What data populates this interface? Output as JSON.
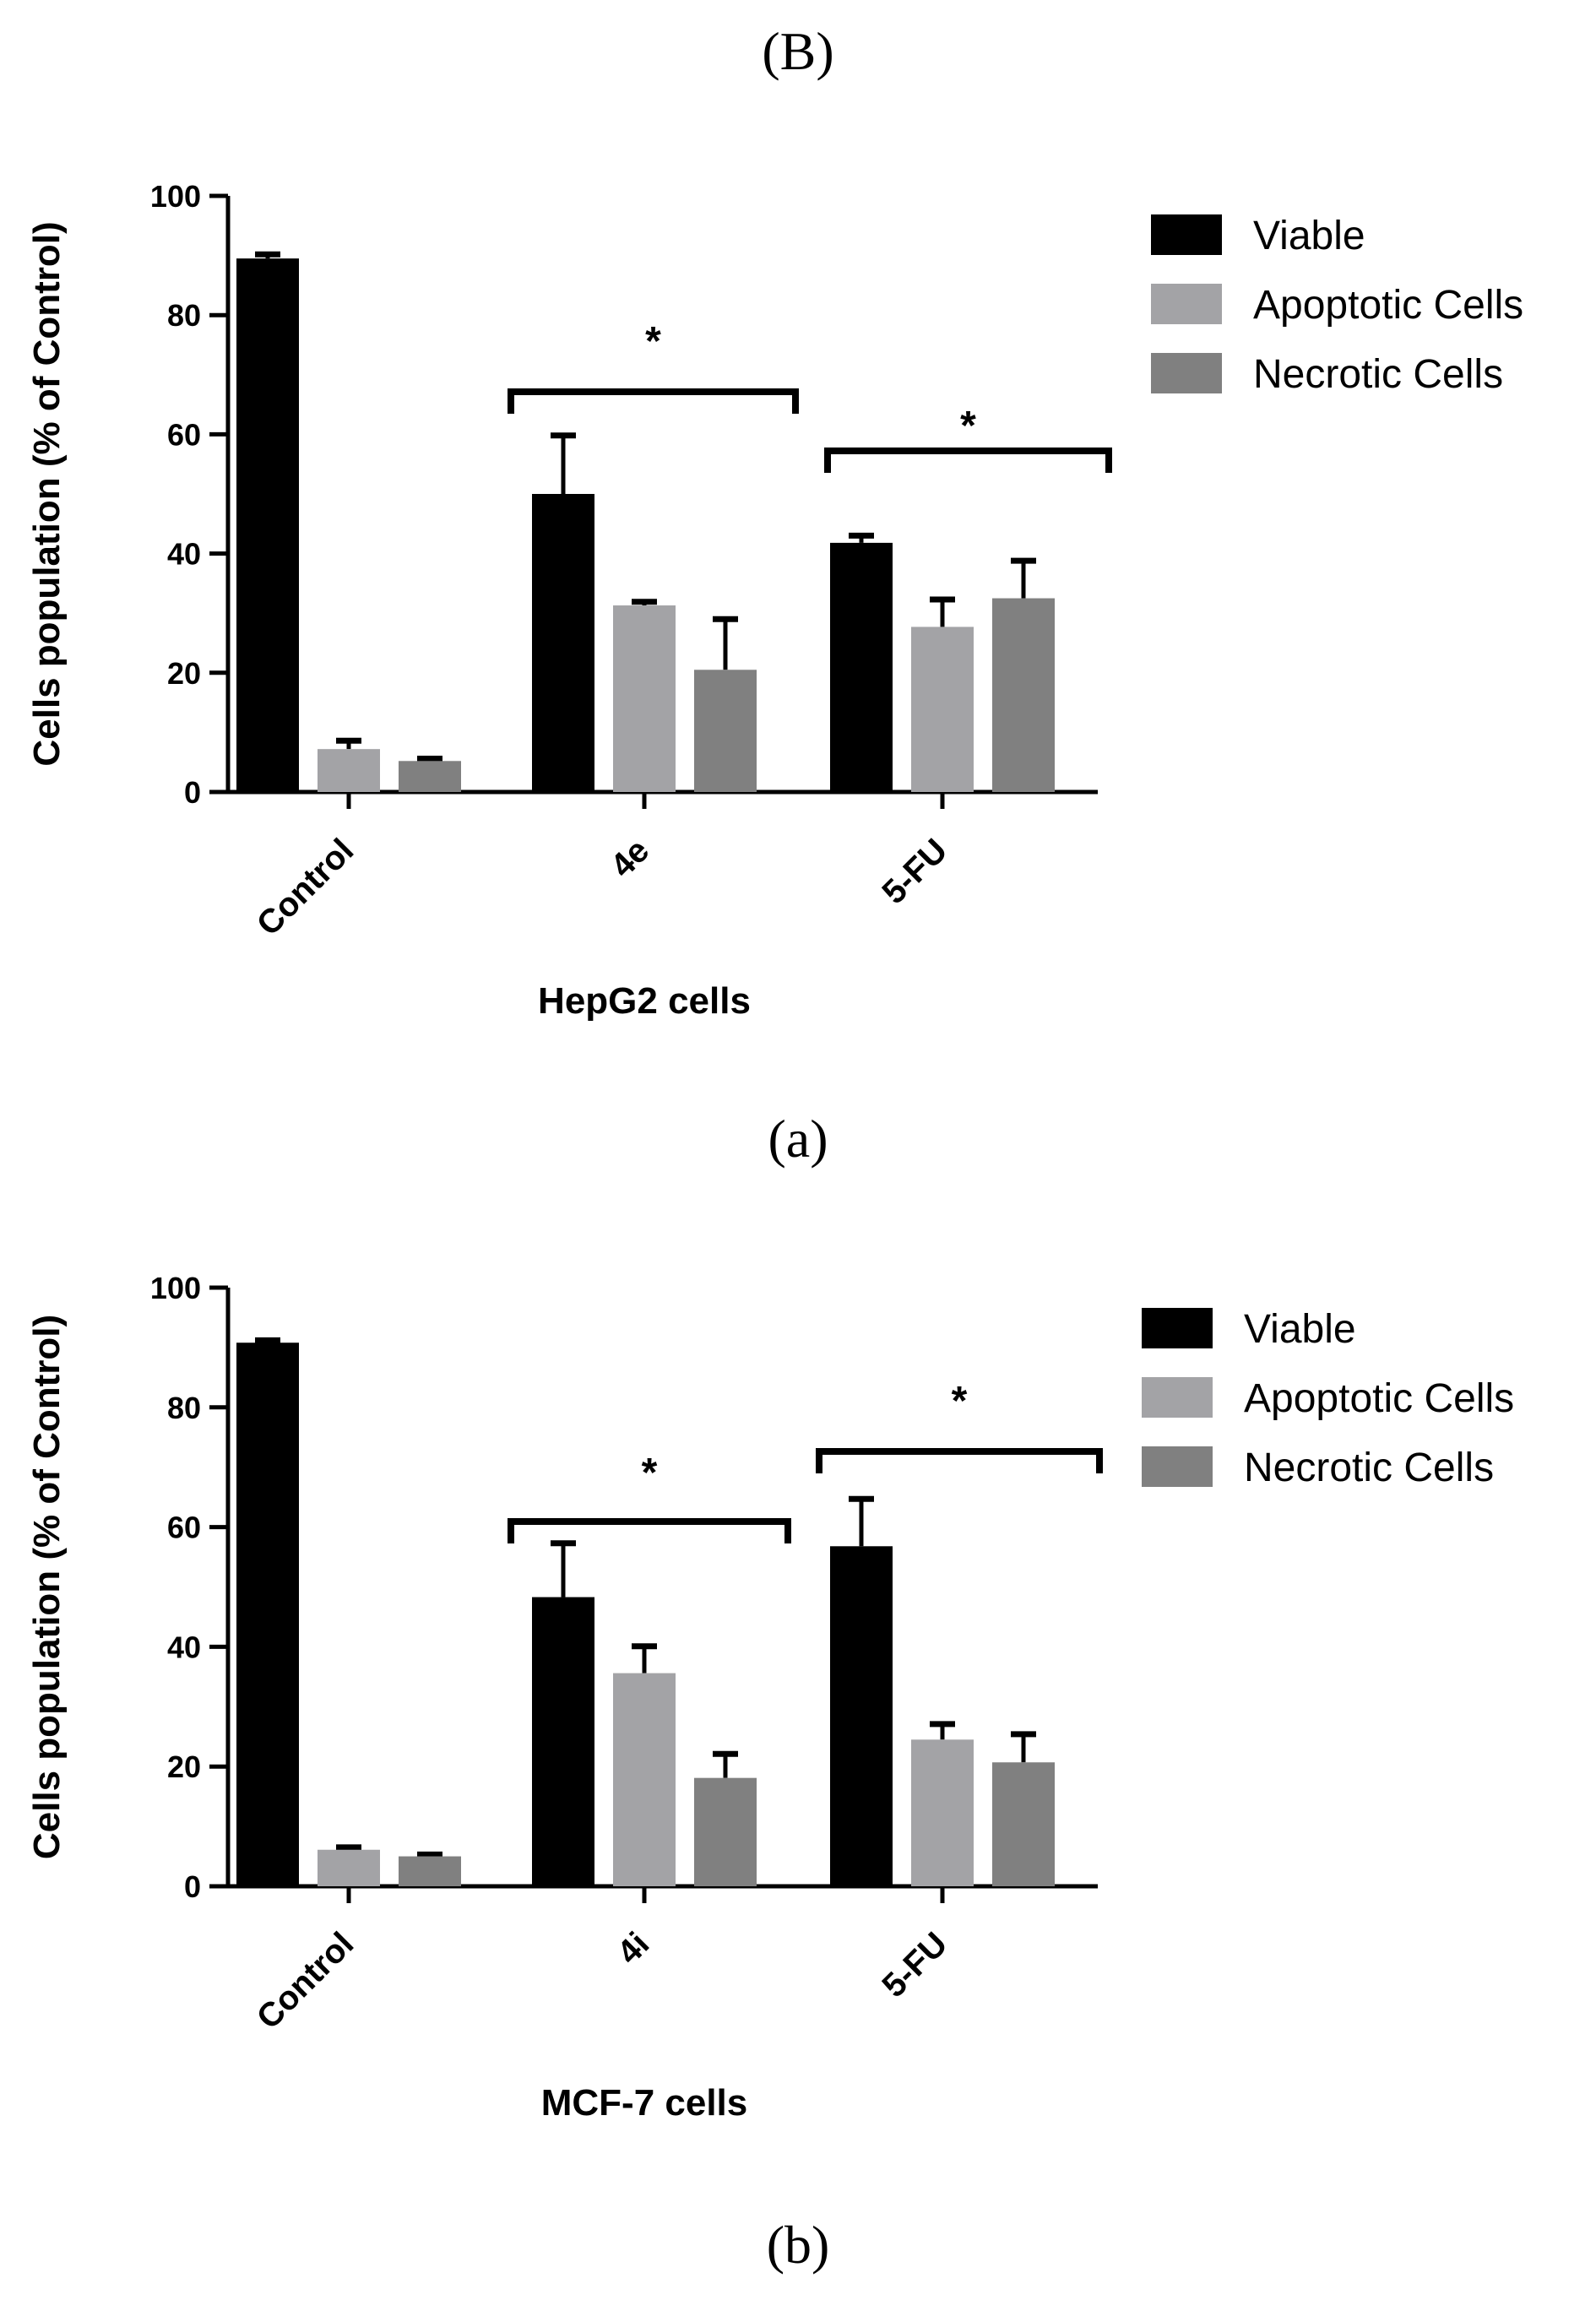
{
  "figure": {
    "top_label": "(B)",
    "panel_labels": [
      "(a)",
      "(b)"
    ]
  },
  "colors": {
    "viable": "#000000",
    "apoptotic": "#a3a3a6",
    "necrotic": "#808080",
    "axis": "#000000"
  },
  "chart_data": [
    {
      "type": "bar",
      "panel": "(a)",
      "xlabel": "HepG2 cells",
      "ylabel": "Cells population (% of Control)",
      "ylim": [
        0,
        100
      ],
      "yticks": [
        0,
        20,
        40,
        60,
        80,
        100
      ],
      "categories": [
        "Control",
        "4e",
        "5-FU"
      ],
      "series": [
        {
          "name": "Viable",
          "values": [
            89.5,
            50,
            41.8
          ],
          "errors": [
            0.7,
            9.8,
            1.2
          ]
        },
        {
          "name": "Apoptotic Cells",
          "values": [
            7.2,
            31.3,
            27.7
          ],
          "errors": [
            1.4,
            0.6,
            4.6
          ]
        },
        {
          "name": "Necrotic Cells",
          "values": [
            5.2,
            20.5,
            32.5
          ],
          "errors": [
            0.4,
            8.5,
            6.3
          ]
        }
      ],
      "significance": [
        {
          "label": "*",
          "category": "4e"
        },
        {
          "label": "*",
          "category": "5-FU"
        }
      ],
      "legend": "top-right",
      "grid": false
    },
    {
      "type": "bar",
      "panel": "(b)",
      "xlabel": "MCF-7 cells",
      "ylabel": "Cells population (% of Control)",
      "ylim": [
        0,
        100
      ],
      "yticks": [
        0,
        20,
        40,
        60,
        80,
        100
      ],
      "categories": [
        "Control",
        "4i",
        "5-FU"
      ],
      "series": [
        {
          "name": "Viable",
          "values": [
            90.8,
            48.3,
            56.8
          ],
          "errors": [
            0.4,
            9.0,
            7.9
          ]
        },
        {
          "name": "Apoptotic Cells",
          "values": [
            6.1,
            35.6,
            24.5
          ],
          "errors": [
            0.4,
            4.5,
            2.6
          ]
        },
        {
          "name": "Necrotic Cells",
          "values": [
            5,
            18.1,
            20.7
          ],
          "errors": [
            0.3,
            4.0,
            4.7
          ]
        }
      ],
      "significance": [
        {
          "label": "*",
          "category": "4i"
        },
        {
          "label": "*",
          "category": "5-FU"
        }
      ],
      "legend": "top-right",
      "grid": false
    }
  ]
}
